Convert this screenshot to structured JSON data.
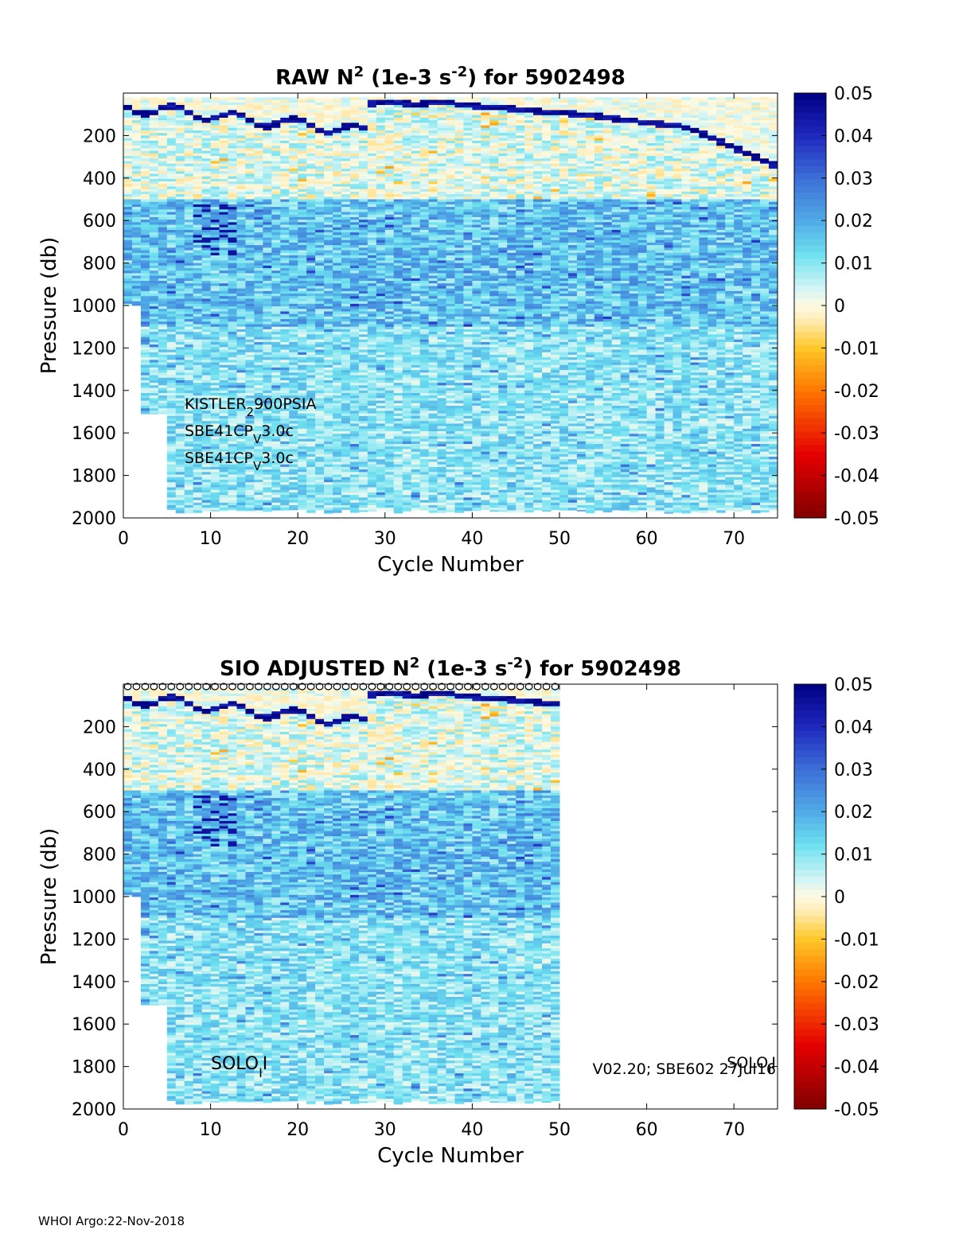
{
  "footer": "WHOI Argo:22-Nov-2018",
  "chart_data": [
    {
      "type": "heatmap",
      "title": {
        "a": "RAW N",
        "sup1": "2",
        "b": " (1e-3 s",
        "sup2": "-2",
        "c": ") for 5902498"
      },
      "xlabel": "Cycle Number",
      "ylabel": "Pressure (db)",
      "xlim": [
        0,
        75
      ],
      "ylim": [
        2000,
        0
      ],
      "y_reversed": true,
      "xticks": [
        0,
        10,
        20,
        30,
        40,
        50,
        60,
        70
      ],
      "yticks": [
        200,
        400,
        600,
        800,
        1000,
        1200,
        1400,
        1600,
        1800,
        2000
      ],
      "data_cycles": [
        0,
        75
      ],
      "colorbar": {
        "range": [
          -0.05,
          0.05
        ],
        "ticks": [
          "0.05",
          "0.04",
          "0.03",
          "0.02",
          "0.01",
          "0",
          "-0.01",
          "-0.02",
          "-0.03",
          "-0.04",
          "-0.05"
        ]
      },
      "annotations": {
        "sensor1": {
          "main": "KISTLER",
          "sub": "2",
          "rest": "900PSIA"
        },
        "sensor2": {
          "main": "SBE41CP",
          "sub": "V",
          "rest": "3.0c"
        },
        "sensor3": {
          "main": "SBE41CP",
          "sub": "V",
          "rest": "3.0c"
        }
      }
    },
    {
      "type": "heatmap",
      "title": {
        "a": "SIO  ADJUSTED N",
        "sup1": "2",
        "b": " (1e-3 s",
        "sup2": "-2",
        "c": ") for 5902498"
      },
      "xlabel": "Cycle Number",
      "ylabel": "Pressure (db)",
      "xlim": [
        0,
        75
      ],
      "ylim": [
        2000,
        0
      ],
      "y_reversed": true,
      "xticks": [
        0,
        10,
        20,
        30,
        40,
        50,
        60,
        70
      ],
      "yticks": [
        200,
        400,
        600,
        800,
        1000,
        1200,
        1400,
        1600,
        1800,
        2000
      ],
      "data_cycles": [
        0,
        50
      ],
      "surface_markers": "o",
      "colorbar": {
        "range": [
          -0.05,
          0.05
        ],
        "ticks": [
          "0.05",
          "0.04",
          "0.03",
          "0.02",
          "0.01",
          "0",
          "-0.01",
          "-0.02",
          "-0.03",
          "-0.04",
          "-0.05"
        ]
      },
      "annotations": {
        "solo_left": {
          "main": "SOLO",
          "sub": "I",
          "rest": "I"
        },
        "version": "V02.20; SBE602 27Jul16",
        "solo_right": {
          "main": "SOLO",
          "sub": "I",
          "rest": "I"
        }
      }
    }
  ]
}
